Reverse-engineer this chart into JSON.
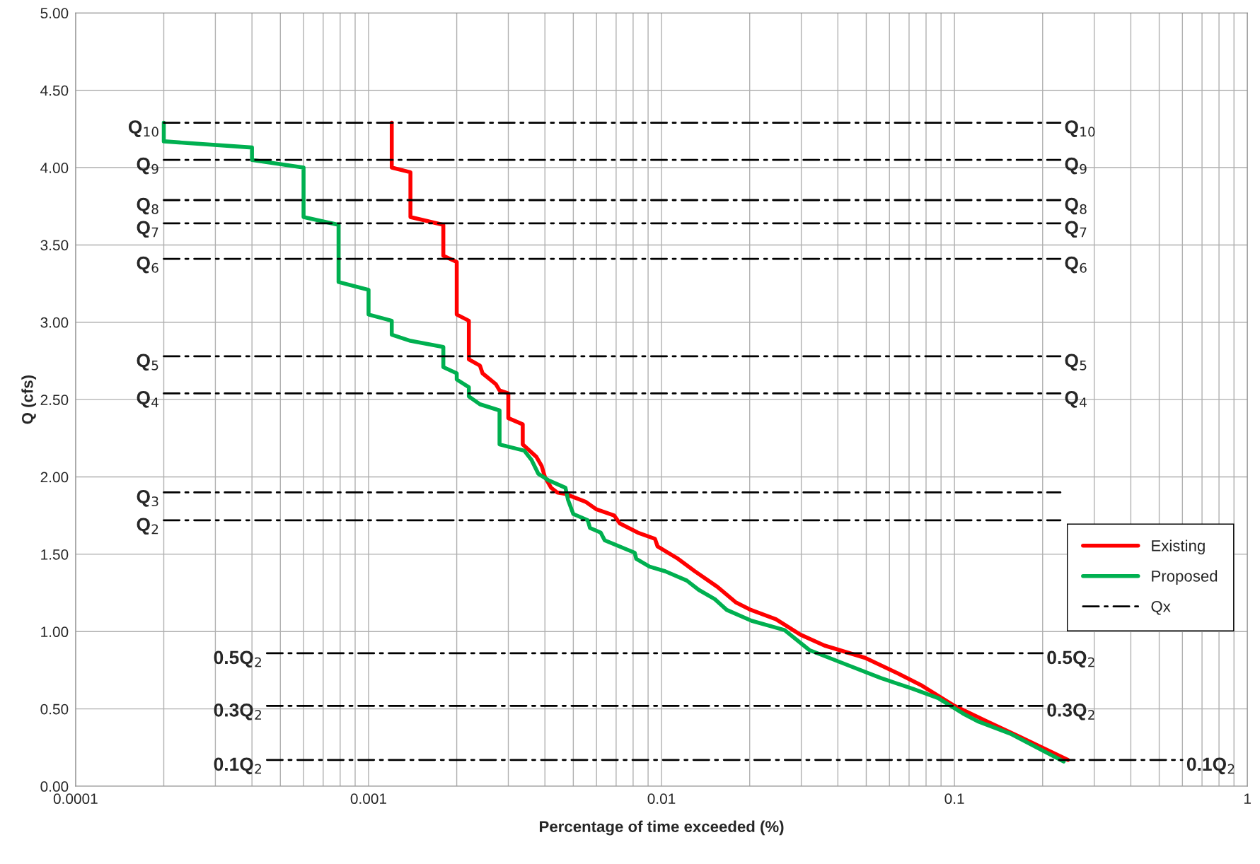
{
  "chart_data": {
    "type": "line",
    "xlabel": "Percentage of time exceeded (%)",
    "ylabel": "Q (cfs)",
    "log": "x",
    "xlim": [
      0.0001,
      1
    ],
    "xticks": [
      0.0001,
      0.001,
      0.01,
      0.1,
      1
    ],
    "ylim": [
      0,
      5
    ],
    "yticks": [
      {
        "value": 0,
        "label": "0.00"
      },
      {
        "value": 0.5,
        "label": "0.50"
      },
      {
        "value": 1,
        "label": "1.00"
      },
      {
        "value": 1.5,
        "label": "1.50"
      },
      {
        "value": 2,
        "label": "2.00"
      },
      {
        "value": 2.5,
        "label": "2.50"
      },
      {
        "value": 3,
        "label": "3.00"
      },
      {
        "value": 3.5,
        "label": "3.50"
      },
      {
        "value": 4,
        "label": "4.00"
      },
      {
        "value": 4.5,
        "label": "4.50"
      },
      {
        "value": 5,
        "label": "5.00"
      }
    ],
    "grid": true,
    "legend": "right",
    "series": [
      {
        "name": "Existing",
        "color": "#ff0000",
        "line_style": "solid",
        "x": [
          0.0012,
          0.0012,
          0.00139,
          0.00139,
          0.0018,
          0.0018,
          0.002,
          0.002,
          0.0022,
          0.0022,
          0.0024,
          0.00245,
          0.00272,
          0.0028,
          0.003,
          0.003,
          0.00336,
          0.00336,
          0.00374,
          0.0039,
          0.004,
          0.0042,
          0.0044,
          0.0047,
          0.0055,
          0.006,
          0.0069,
          0.0072,
          0.0083,
          0.0095,
          0.0097,
          0.0114,
          0.013,
          0.0155,
          0.0179,
          0.0202,
          0.0246,
          0.0298,
          0.036,
          0.0496,
          0.064,
          0.0775,
          0.1,
          0.129,
          0.167,
          0.244
        ],
        "values": [
          4.29,
          4.0,
          3.97,
          3.68,
          3.63,
          3.43,
          3.39,
          3.05,
          3.01,
          2.76,
          2.72,
          2.67,
          2.6,
          2.56,
          2.54,
          2.38,
          2.34,
          2.21,
          2.13,
          2.07,
          2.0,
          1.93,
          1.9,
          1.89,
          1.84,
          1.79,
          1.75,
          1.7,
          1.64,
          1.6,
          1.55,
          1.47,
          1.39,
          1.29,
          1.19,
          1.14,
          1.08,
          0.98,
          0.91,
          0.83,
          0.73,
          0.65,
          0.52,
          0.42,
          0.32,
          0.17
        ]
      },
      {
        "name": "Proposed",
        "color": "#00b050",
        "line_style": "solid",
        "x": [
          0.0002,
          0.0002,
          0.0004,
          0.0004,
          0.0006,
          0.0006,
          0.00079,
          0.00079,
          0.001,
          0.001,
          0.0012,
          0.0012,
          0.00139,
          0.0018,
          0.0018,
          0.002,
          0.002,
          0.0022,
          0.0022,
          0.0024,
          0.0028,
          0.0028,
          0.0034,
          0.0036,
          0.0038,
          0.0041,
          0.0047,
          0.0048,
          0.005,
          0.0056,
          0.0057,
          0.0062,
          0.0064,
          0.0081,
          0.0082,
          0.0091,
          0.0103,
          0.0122,
          0.0134,
          0.0152,
          0.0167,
          0.0203,
          0.0263,
          0.032,
          0.041,
          0.056,
          0.072,
          0.088,
          0.107,
          0.12,
          0.155,
          0.236
        ],
        "values": [
          4.29,
          4.17,
          4.13,
          4.05,
          4.0,
          3.68,
          3.63,
          3.26,
          3.21,
          3.05,
          3.01,
          2.92,
          2.88,
          2.84,
          2.71,
          2.67,
          2.63,
          2.58,
          2.52,
          2.47,
          2.43,
          2.21,
          2.17,
          2.11,
          2.02,
          1.98,
          1.93,
          1.85,
          1.76,
          1.72,
          1.67,
          1.64,
          1.59,
          1.51,
          1.47,
          1.42,
          1.39,
          1.33,
          1.27,
          1.21,
          1.14,
          1.07,
          1.01,
          0.88,
          0.8,
          0.7,
          0.63,
          0.57,
          0.47,
          0.42,
          0.34,
          0.16
        ]
      },
      {
        "name": "Qx",
        "color": "#000000",
        "line_style": "dashdot",
        "x": [
          0.0002,
          0.23
        ],
        "values": [
          4.29,
          4.29
        ]
      },
      {
        "color": "#000000",
        "line_style": "dashdot",
        "x": [
          0.0002,
          0.23
        ],
        "values": [
          4.05,
          4.05
        ]
      },
      {
        "color": "#000000",
        "line_style": "dashdot",
        "x": [
          0.0002,
          0.23
        ],
        "values": [
          3.79,
          3.79
        ]
      },
      {
        "color": "#000000",
        "line_style": "dashdot",
        "x": [
          0.0002,
          0.23
        ],
        "values": [
          3.64,
          3.64
        ]
      },
      {
        "color": "#000000",
        "line_style": "dashdot",
        "x": [
          0.0002,
          0.23
        ],
        "values": [
          3.41,
          3.41
        ]
      },
      {
        "color": "#000000",
        "line_style": "dashdot",
        "x": [
          0.0002,
          0.23
        ],
        "values": [
          2.78,
          2.78
        ]
      },
      {
        "color": "#000000",
        "line_style": "dashdot",
        "x": [
          0.0002,
          0.23
        ],
        "values": [
          2.54,
          2.54
        ]
      },
      {
        "color": "#000000",
        "line_style": "dashdot",
        "x": [
          0.0002,
          0.23
        ],
        "values": [
          1.9,
          1.9
        ]
      },
      {
        "color": "#000000",
        "line_style": "dashdot",
        "x": [
          0.0002,
          0.23
        ],
        "values": [
          1.72,
          1.72
        ]
      },
      {
        "color": "#000000",
        "line_style": "dashdot",
        "x": [
          0.00045,
          0.2
        ],
        "values": [
          0.86,
          0.86
        ]
      },
      {
        "color": "#000000",
        "line_style": "dashdot",
        "x": [
          0.00045,
          0.2
        ],
        "values": [
          0.52,
          0.52
        ]
      },
      {
        "color": "#000000",
        "line_style": "dashdot",
        "x": [
          0.00045,
          0.6
        ],
        "values": [
          0.17,
          0.17
        ]
      }
    ],
    "annotations": [
      {
        "text": "Q$_{10}$",
        "x": 0.0002,
        "y": 4.29
      },
      {
        "text": "Q$_{10}$",
        "x": 0.23,
        "y": 4.29
      },
      {
        "text": "Q$_{9}$",
        "x": 0.0002,
        "y": 4.05
      },
      {
        "text": "Q$_{9}$",
        "x": 0.23,
        "y": 4.05
      },
      {
        "text": "Q$_{8}$",
        "x": 0.0002,
        "y": 3.79
      },
      {
        "text": "Q$_{8}$",
        "x": 0.23,
        "y": 3.79
      },
      {
        "text": "Q$_{7}$",
        "x": 0.0002,
        "y": 3.64
      },
      {
        "text": "Q$_{7}$",
        "x": 0.23,
        "y": 3.64
      },
      {
        "text": "Q$_{6}$",
        "x": 0.0002,
        "y": 3.41
      },
      {
        "text": "Q$_{6}$",
        "x": 0.23,
        "y": 3.41
      },
      {
        "text": "Q$_{5}$",
        "x": 0.0002,
        "y": 2.78
      },
      {
        "text": "Q$_{5}$",
        "x": 0.23,
        "y": 2.78
      },
      {
        "text": "Q$_{4}$",
        "x": 0.0002,
        "y": 2.54
      },
      {
        "text": "Q$_{4}$",
        "x": 0.23,
        "y": 2.54
      },
      {
        "text": "Q$_{3}$",
        "x": 0.0002,
        "y": 1.9
      },
      {
        "text": "Q$_{2}$",
        "x": 0.0002,
        "y": 1.72
      },
      {
        "text": "0.5Q$_{2}$",
        "x": 0.00045,
        "y": 0.86
      },
      {
        "text": "0.5Q$_{2}$",
        "x": 0.2,
        "y": 0.86
      },
      {
        "text": "0.3Q$_{2}$",
        "x": 0.00045,
        "y": 0.52
      },
      {
        "text": "0.3Q$_{2}$",
        "x": 0.2,
        "y": 0.52
      },
      {
        "text": "0.1Q$_{2}$",
        "x": 0.00045,
        "y": 0.17
      },
      {
        "text": "0.1Q$_{2}$",
        "x": 0.6,
        "y": 0.17
      }
    ]
  }
}
